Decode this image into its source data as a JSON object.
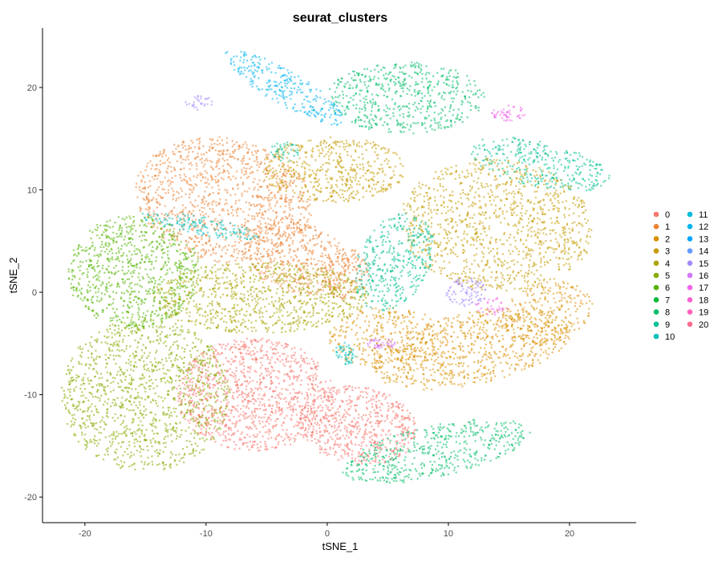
{
  "chart_data": {
    "type": "scatter",
    "title": "seurat_clusters",
    "xlabel": "tSNE_1",
    "ylabel": "tSNE_2",
    "xlim": [
      -23.5,
      25.5
    ],
    "ylim": [
      -22.5,
      25.8
    ],
    "xticks": [
      -20,
      -10,
      0,
      10,
      20
    ],
    "yticks": [
      -20,
      -10,
      0,
      10,
      20
    ],
    "grid": false,
    "legend_position": "right",
    "series": [
      {
        "name": "0",
        "color": "#F8766D",
        "regions": []
      },
      {
        "name": "1",
        "color": "#EB8335",
        "regions": [
          {
            "cx": -8.5,
            "cy": 9,
            "rx": 7.5,
            "ry": 6,
            "n": 1100,
            "rot": -20
          },
          {
            "cx": -2.5,
            "cy": 3.5,
            "rx": 4.5,
            "ry": 3.5,
            "n": 400,
            "rot": -30
          },
          {
            "cx": 1.5,
            "cy": 1.8,
            "rx": 2,
            "ry": 2.5,
            "n": 150,
            "rot": 0
          }
        ]
      },
      {
        "name": "2",
        "color": "#DA8F00",
        "regions": [
          {
            "cx": 12,
            "cy": -5.5,
            "rx": 8.5,
            "ry": 3.5,
            "n": 700,
            "rot": 15
          },
          {
            "cx": 5,
            "cy": -4.5,
            "rx": 5,
            "ry": 3,
            "n": 350,
            "rot": 0
          },
          {
            "cx": 18,
            "cy": -2,
            "rx": 4,
            "ry": 3,
            "n": 250,
            "rot": 20
          }
        ]
      },
      {
        "name": "3",
        "color": "#C49A00",
        "regions": [
          {
            "cx": 0.5,
            "cy": 12,
            "rx": 6,
            "ry": 3.2,
            "n": 500,
            "rot": 0
          },
          {
            "cx": 14,
            "cy": 6.5,
            "rx": 8,
            "ry": 6.5,
            "n": 1100,
            "rot": -10
          }
        ]
      },
      {
        "name": "4",
        "color": "#A9A400",
        "regions": [
          {
            "cx": -5.5,
            "cy": -0.5,
            "rx": 9,
            "ry": 3.5,
            "n": 900,
            "rot": 0
          }
        ]
      },
      {
        "name": "5",
        "color": "#87AC00",
        "regions": [
          {
            "cx": -15,
            "cy": -10,
            "rx": 7,
            "ry": 7.5,
            "n": 1200,
            "rot": 0
          }
        ]
      },
      {
        "name": "6",
        "color": "#53B400",
        "regions": [
          {
            "cx": -16,
            "cy": 2,
            "rx": 5.5,
            "ry": 5.5,
            "n": 800,
            "rot": 0
          }
        ]
      },
      {
        "name": "7",
        "color": "#00BA38",
        "regions": []
      },
      {
        "name": "8",
        "color": "#00BE67",
        "regions": [
          {
            "cx": 6.5,
            "cy": 19,
            "rx": 6.5,
            "ry": 3.5,
            "n": 550,
            "rot": 0
          },
          {
            "cx": 9,
            "cy": -15.5,
            "rx": 8,
            "ry": 2.5,
            "n": 500,
            "rot": 15
          }
        ]
      },
      {
        "name": "9",
        "color": "#00C094",
        "regions": [
          {
            "cx": 5.5,
            "cy": 3,
            "rx": 3,
            "ry": 5,
            "n": 400,
            "rot": -20
          },
          {
            "cx": 17.5,
            "cy": 12.5,
            "rx": 6,
            "ry": 2.2,
            "n": 320,
            "rot": -15
          },
          {
            "cx": -3.5,
            "cy": 13.8,
            "rx": 1.2,
            "ry": 1,
            "n": 40,
            "rot": 0
          }
        ]
      },
      {
        "name": "10",
        "color": "#00C0B8",
        "regions": [
          {
            "cx": -10.5,
            "cy": 6.5,
            "rx": 5,
            "ry": 0.9,
            "n": 150,
            "rot": -12
          },
          {
            "cx": 1.5,
            "cy": -6,
            "rx": 0.9,
            "ry": 1.1,
            "n": 50,
            "rot": 0
          }
        ]
      },
      {
        "name": "11",
        "color": "#00BCD8",
        "regions": []
      },
      {
        "name": "12",
        "color": "#00B4EF",
        "regions": [
          {
            "cx": -3.5,
            "cy": 20,
            "rx": 6,
            "ry": 1.6,
            "n": 280,
            "rot": -35
          }
        ]
      },
      {
        "name": "13",
        "color": "#00A5FF",
        "regions": []
      },
      {
        "name": "14",
        "color": "#619CFF",
        "regions": []
      },
      {
        "name": "15",
        "color": "#A58AFF",
        "regions": [
          {
            "cx": 11.5,
            "cy": 0,
            "rx": 1.7,
            "ry": 1.5,
            "n": 90,
            "rot": 0
          },
          {
            "cx": -10.5,
            "cy": 18.5,
            "rx": 1.2,
            "ry": 0.7,
            "n": 30,
            "rot": 0
          }
        ]
      },
      {
        "name": "16",
        "color": "#D376FF",
        "regions": [
          {
            "cx": 4.5,
            "cy": -5,
            "rx": 1.2,
            "ry": 0.5,
            "n": 40,
            "rot": 0
          }
        ]
      },
      {
        "name": "17",
        "color": "#F066EA",
        "regions": [
          {
            "cx": 15,
            "cy": 17.5,
            "rx": 1.4,
            "ry": 0.8,
            "n": 50,
            "rot": 0
          },
          {
            "cx": 13.5,
            "cy": -1.5,
            "rx": 1.4,
            "ry": 1,
            "n": 35,
            "rot": 0
          }
        ]
      },
      {
        "name": "18",
        "color": "#FD61D1",
        "regions": []
      },
      {
        "name": "19",
        "color": "#FF62BC",
        "regions": []
      },
      {
        "name": "20",
        "color": "#FF6C91",
        "regions": []
      }
    ],
    "extra_series": [
      {
        "name": "0",
        "color": "#F8766D",
        "regions": [
          {
            "cx": -6,
            "cy": -10,
            "rx": 6.5,
            "ry": 5.5,
            "n": 1100,
            "rot": 0
          },
          {
            "cx": 2.5,
            "cy": -13,
            "rx": 5,
            "ry": 3.8,
            "n": 600,
            "rot": -15
          }
        ]
      }
    ]
  }
}
